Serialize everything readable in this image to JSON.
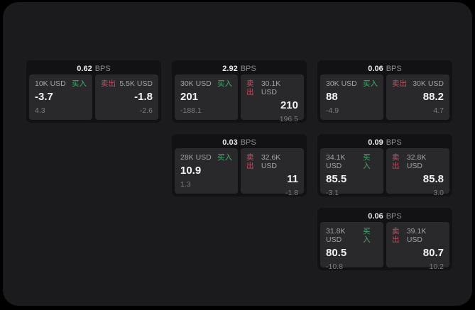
{
  "labels": {
    "bps": "BPS",
    "buy": "买入",
    "sell": "卖出"
  },
  "colors": {
    "outer_background": "#000000",
    "screen_background": "#1b1b1d",
    "card_background": "#121214",
    "panel_background": "#29292b",
    "buy_green": "#3fb06a",
    "sell_red": "#cf4a5e",
    "primary_text": "#f2f3f3",
    "secondary_text": "#a2a3a5",
    "muted_text": "#7b7c7e"
  },
  "cards": [
    {
      "bps": "0.62",
      "buy": {
        "amount": "10K USD",
        "price": "-3.7",
        "delta": "4.3"
      },
      "sell": {
        "amount": "5.5K USD",
        "price": "-1.8",
        "delta": "-2.6"
      }
    },
    {
      "bps": "2.92",
      "buy": {
        "amount": "30K USD",
        "price": "201",
        "delta": "-188.1"
      },
      "sell": {
        "amount": "30.1K USD",
        "price": "210",
        "delta": "196.5"
      }
    },
    {
      "bps": "0.06",
      "buy": {
        "amount": "30K USD",
        "price": "88",
        "delta": "-4.9"
      },
      "sell": {
        "amount": "30K USD",
        "price": "88.2",
        "delta": "4.7"
      }
    },
    {
      "bps": "0.03",
      "buy": {
        "amount": "28K USD",
        "price": "10.9",
        "delta": "1.3"
      },
      "sell": {
        "amount": "32.6K USD",
        "price": "11",
        "delta": "-1.8"
      }
    },
    {
      "bps": "0.09",
      "buy": {
        "amount": "34.1K USD",
        "price": "85.5",
        "delta": "-3.1"
      },
      "sell": {
        "amount": "32.8K USD",
        "price": "85.8",
        "delta": "3.0"
      }
    },
    {
      "bps": "0.06",
      "buy": {
        "amount": "31.8K USD",
        "price": "80.5",
        "delta": "-10.8"
      },
      "sell": {
        "amount": "39.1K USD",
        "price": "80.7",
        "delta": "10.2"
      }
    }
  ]
}
